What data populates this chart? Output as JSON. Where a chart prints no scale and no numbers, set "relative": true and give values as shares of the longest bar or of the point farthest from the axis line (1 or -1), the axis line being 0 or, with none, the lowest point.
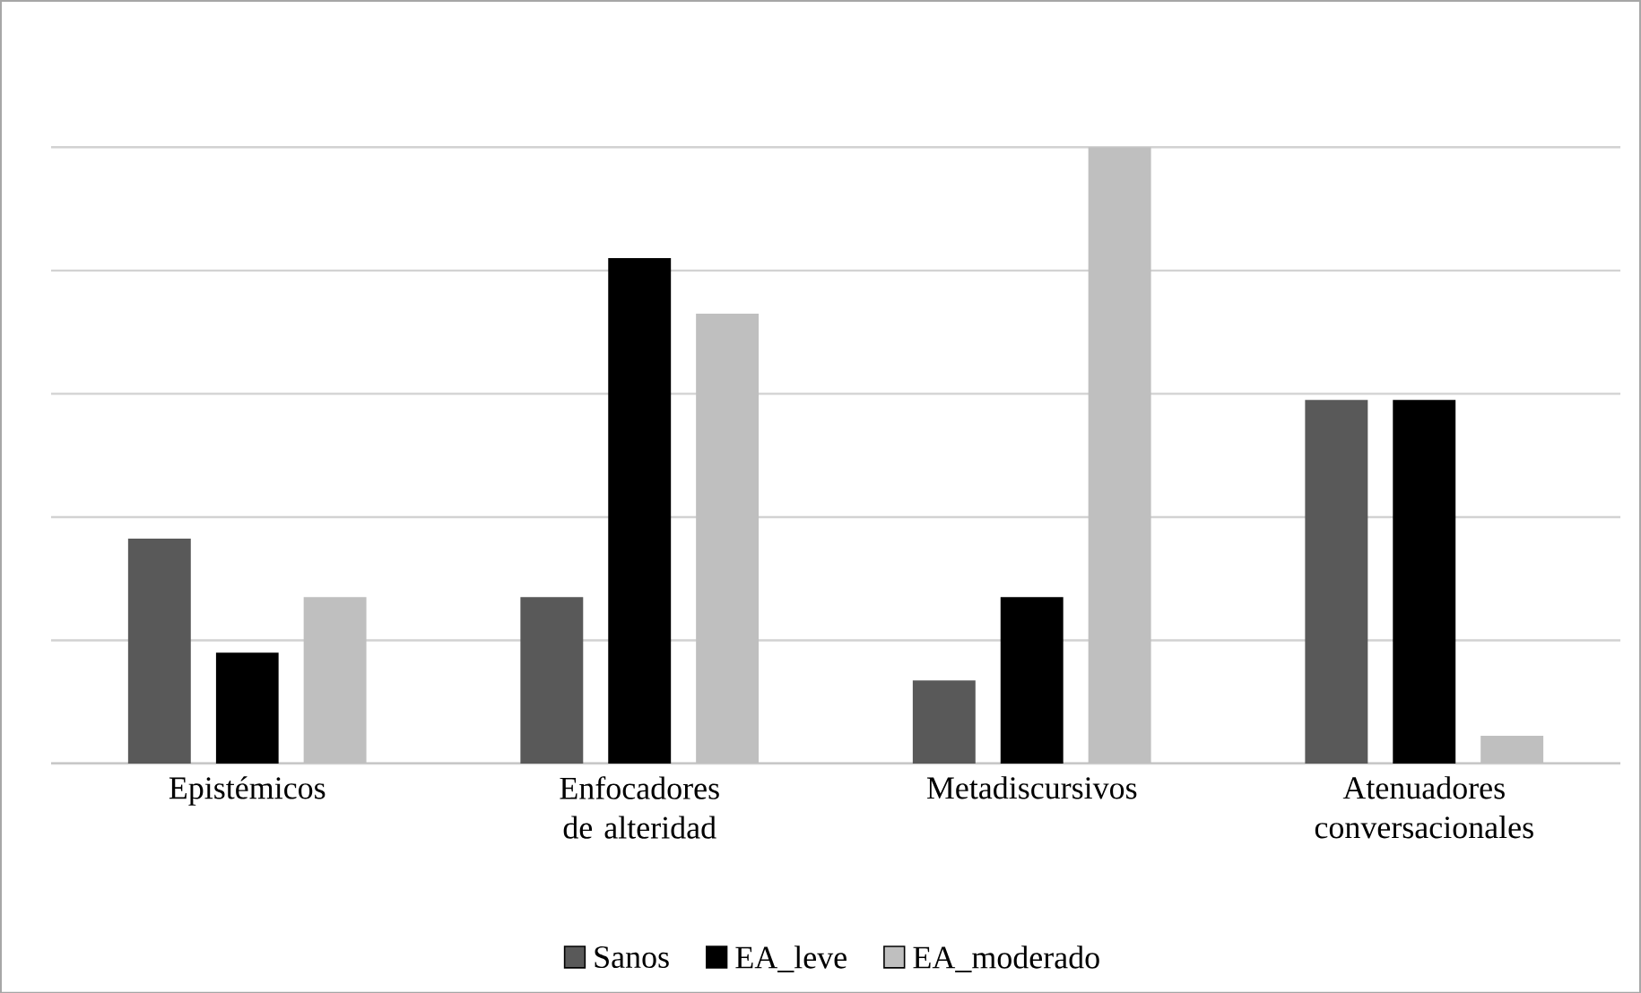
{
  "chart_data": {
    "type": "bar",
    "relative": true,
    "grid": "y",
    "legend": "bottom",
    "categories": [
      "Epistémicos",
      "Enfocadores de alteridad",
      "Metadiscursivos",
      "Atenuadores conversacionales"
    ],
    "series": [
      {
        "name": "Sanos",
        "color": "#595959",
        "values": [
          0.365,
          0.27,
          0.135,
          0.59
        ]
      },
      {
        "name": "EA_leve",
        "color": "#000000",
        "values": [
          0.18,
          0.82,
          0.27,
          0.59
        ]
      },
      {
        "name": "EA_moderado",
        "color": "#bfbfbf",
        "values": [
          0.27,
          0.73,
          1,
          0.045
        ]
      }
    ]
  }
}
